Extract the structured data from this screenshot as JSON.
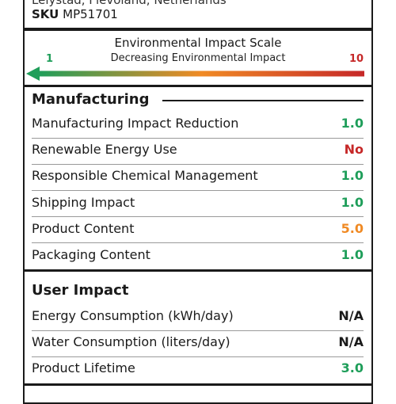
{
  "header": {
    "location": "Lelystad, Flevoland, Netherlands",
    "sku_label": "SKU",
    "sku_value": "MP51701"
  },
  "scale": {
    "title": "Environmental Impact Scale",
    "subtitle": "Decreasing Environmental Impact",
    "min_label": "1",
    "max_label": "10",
    "gradient_colors": [
      "#1f9e5a",
      "#f08a24",
      "#c62828"
    ]
  },
  "sections": [
    {
      "title": "Manufacturing",
      "rows": [
        {
          "label": "Manufacturing Impact Reduction",
          "value": "1.0",
          "color": "#1f9e5a"
        },
        {
          "label": "Renewable Energy Use",
          "value": "No",
          "color": "#c62828"
        },
        {
          "label": "Responsible Chemical Management",
          "value": "1.0",
          "color": "#1f9e5a"
        },
        {
          "label": "Shipping Impact",
          "value": "1.0",
          "color": "#1f9e5a"
        },
        {
          "label": "Product Content",
          "value": "5.0",
          "color": "#f08a24"
        },
        {
          "label": "Packaging Content",
          "value": "1.0",
          "color": "#1f9e5a"
        }
      ]
    },
    {
      "title": "User Impact",
      "rows": [
        {
          "label": "Energy Consumption (kWh/day)",
          "value": "N/A",
          "color": "#1a1a1a"
        },
        {
          "label": "Water Consumption (liters/day)",
          "value": "N/A",
          "color": "#1a1a1a"
        },
        {
          "label": "Product Lifetime",
          "value": "3.0",
          "color": "#1f9e5a"
        }
      ]
    }
  ]
}
